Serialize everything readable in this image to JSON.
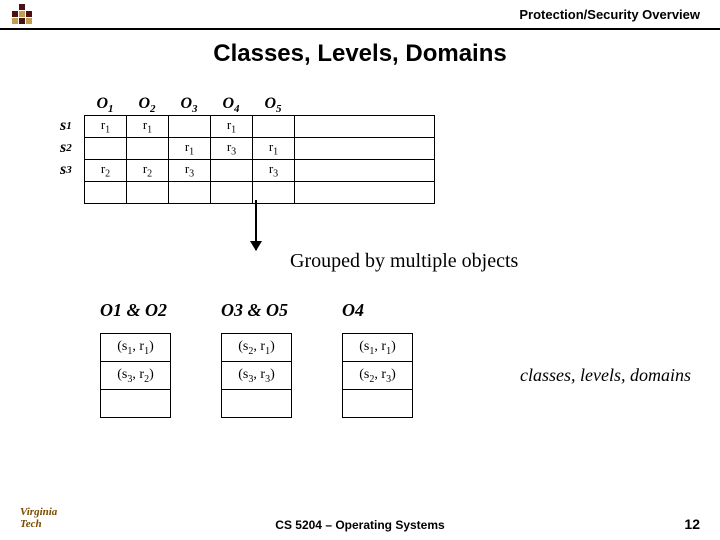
{
  "header": {
    "text": "Protection/Security Overview"
  },
  "title": "Classes, Levels, Domains",
  "matrix": {
    "col_labels": [
      "O 1",
      "O 2",
      "O 3",
      "O 4",
      "O 5"
    ],
    "row_labels": [
      "s 1",
      "s 2",
      "s 3"
    ],
    "cells": [
      [
        "r1",
        "r1",
        "",
        "r1",
        "",
        ""
      ],
      [
        "",
        "",
        "r1",
        "r3",
        "r1",
        ""
      ],
      [
        "r2",
        "r2",
        "r3",
        "",
        "r3",
        ""
      ],
      [
        "",
        "",
        "",
        "",
        "",
        ""
      ]
    ]
  },
  "arrow_label": "Grouped by multiple objects",
  "groups": [
    {
      "header": "O 1 & O 2",
      "rows": [
        "(s1, r1)",
        "(s3, r2)",
        ""
      ]
    },
    {
      "header": "O 3 & O 5",
      "rows": [
        "(s2, r1)",
        "(s3, r3)",
        ""
      ]
    },
    {
      "header": "O 4",
      "rows": [
        "(s1, r1)",
        "(s2, r3)",
        ""
      ]
    }
  ],
  "annotation": "classes, levels, domains",
  "footer": {
    "course": "CS 5204 – Operating Systems",
    "page": "12",
    "logo_text": "Virginia Tech"
  },
  "colors": {
    "text": "#000000",
    "border": "#000000",
    "bg": "#ffffff",
    "logo": "#7a4a00",
    "icon_dark": "#4d0f0f",
    "icon_light": "#c0a050"
  }
}
